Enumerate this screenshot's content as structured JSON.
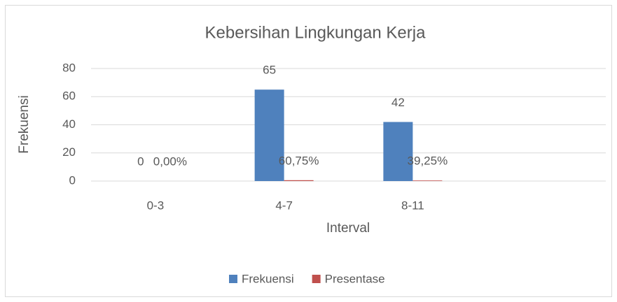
{
  "chart_data": {
    "type": "bar",
    "title": "Kebersihan Lingkungan Kerja",
    "x_label": "Interval",
    "y_label": "Frekuensi",
    "categories": [
      "0-3",
      "4-7",
      "8-11",
      null
    ],
    "series": [
      {
        "name": "Frekuensi",
        "color": "#4f81bd",
        "values": [
          0,
          65,
          42,
          null
        ]
      },
      {
        "name": "Presentase",
        "color": "#c0504d",
        "values": [
          0,
          0.6075,
          0.3925,
          null
        ],
        "value_labels": [
          "0,00%",
          "60,75%",
          "39,25%",
          null
        ]
      }
    ],
    "ylim": [
      0,
      80
    ],
    "yticks": [
      0,
      20,
      40,
      60,
      80
    ],
    "grid": true,
    "legend": "bottom"
  }
}
